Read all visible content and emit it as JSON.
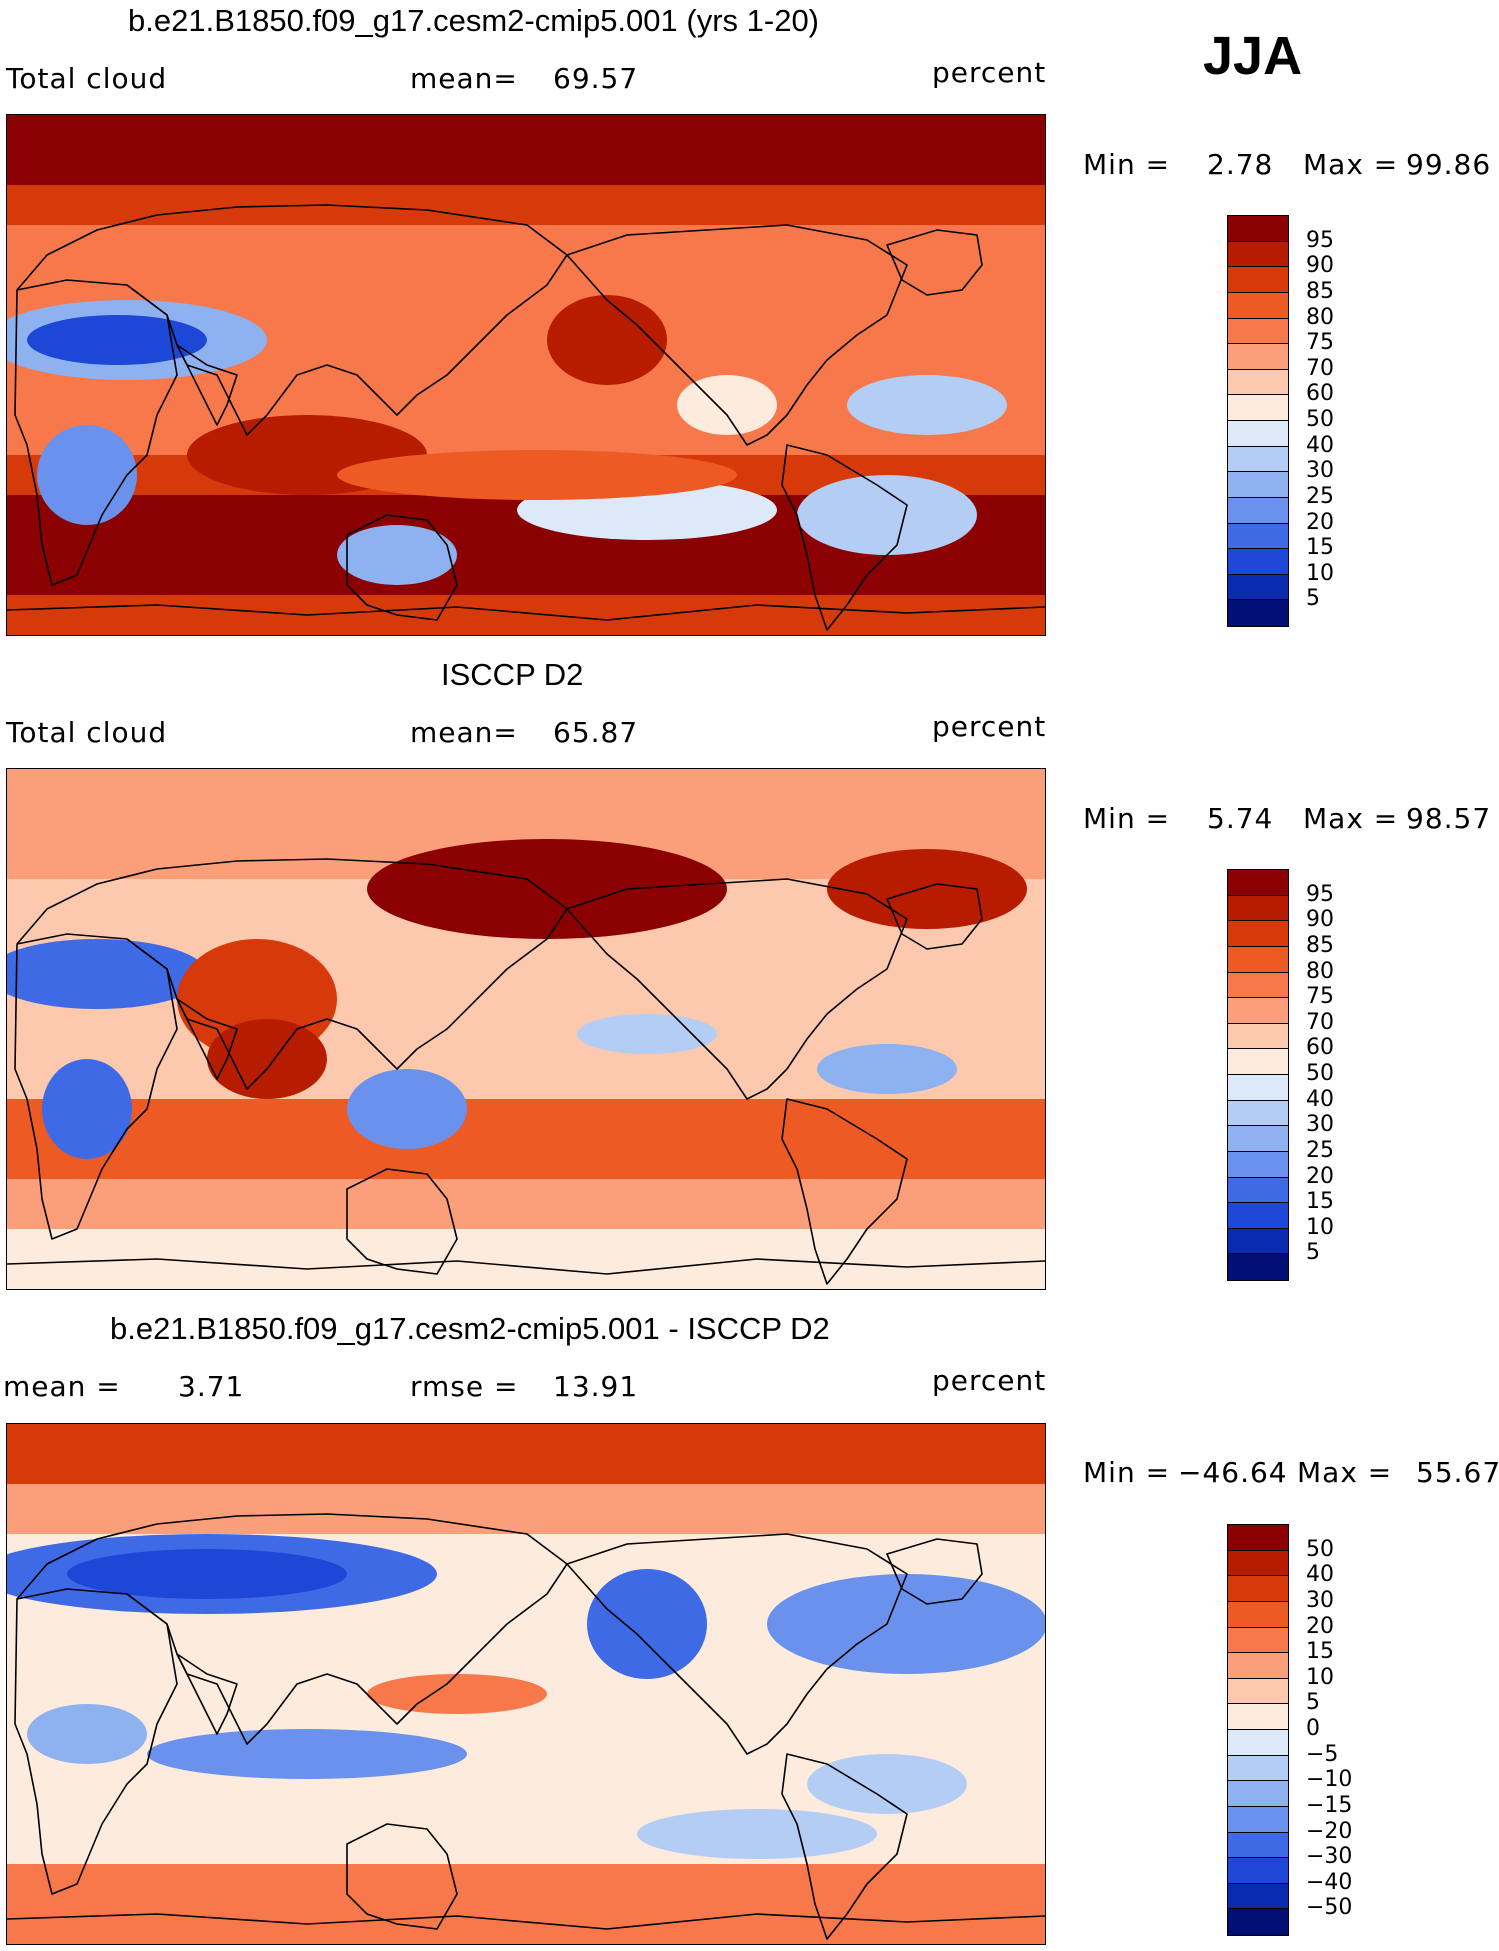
{
  "season": "JJA",
  "panels": [
    {
      "title": "b.e21.B1850.f09_g17.cesm2-cmip5.001 (yrs 1-20)",
      "left_label": "Total cloud",
      "center_label": "mean=",
      "center_value": "69.57",
      "right_label": "percent",
      "min_label": "Min =",
      "min_value": "2.78",
      "max_label": "Max =",
      "max_value": "99.86",
      "kind": "model"
    },
    {
      "title": "ISCCP D2",
      "left_label": "Total cloud",
      "center_label": "mean=",
      "center_value": "65.87",
      "right_label": "percent",
      "min_label": "Min =",
      "min_value": "5.74",
      "max_label": "Max =",
      "max_value": "98.57",
      "kind": "obs"
    },
    {
      "title": "b.e21.B1850.f09_g17.cesm2-cmip5.001 - ISCCP D2",
      "left_label": "mean =",
      "left_value": "3.71",
      "center_label": "rmse =",
      "center_value": "13.91",
      "right_label": "percent",
      "min_label": "Min =",
      "min_value": "−46.64",
      "max_label": "Max =",
      "max_value": "55.67",
      "kind": "diff"
    }
  ],
  "colorbar_abs": {
    "labels": [
      "95",
      "90",
      "85",
      "80",
      "75",
      "70",
      "60",
      "50",
      "40",
      "30",
      "25",
      "20",
      "15",
      "10",
      "5"
    ],
    "colors": [
      "#8b0000",
      "#b81c00",
      "#d63a0a",
      "#ee5a24",
      "#f7784a",
      "#fb9e7a",
      "#fcc9af",
      "#fdebdd",
      "#dde9f9",
      "#b4cdf5",
      "#8eb1f0",
      "#6a92ec",
      "#3f6ae6",
      "#1d47d6",
      "#0a2bb0",
      "#020f73"
    ]
  },
  "colorbar_diff": {
    "labels": [
      "50",
      "40",
      "30",
      "20",
      "15",
      "10",
      "5",
      "0",
      "−5",
      "−10",
      "−15",
      "−20",
      "−30",
      "−40",
      "−50"
    ],
    "colors": [
      "#8b0000",
      "#b81c00",
      "#d63a0a",
      "#ee5a24",
      "#f7784a",
      "#fb9e7a",
      "#fcc9af",
      "#fdebdd",
      "#dde9f9",
      "#b4cdf5",
      "#8eb1f0",
      "#6a92ec",
      "#3f6ae6",
      "#1d47d6",
      "#0a2bb0",
      "#020f73"
    ]
  }
}
